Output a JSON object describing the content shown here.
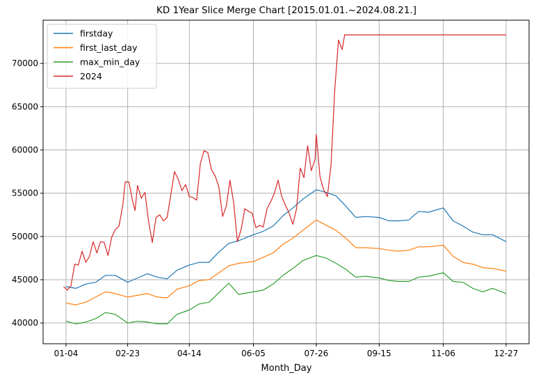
{
  "chart_data": {
    "type": "line",
    "title": "KD 1Year Slice Merge Chart [2015.01.01.~2024.08.21.]",
    "xlabel": "Month_Day",
    "ylabel": "",
    "x_ticks": [
      "01-04",
      "02-23",
      "04-14",
      "06-05",
      "07-26",
      "09-15",
      "11-06",
      "12-27"
    ],
    "y_ticks": [
      40000,
      45000,
      50000,
      55000,
      60000,
      65000,
      70000
    ],
    "ylim": [
      37600,
      75000
    ],
    "grid": true,
    "legend": "top-left",
    "series": [
      {
        "name": "firstday",
        "color": "#1f77b4",
        "points": [
          [
            "01-04",
            44200
          ],
          [
            "01-12",
            44000
          ],
          [
            "01-20",
            44500
          ],
          [
            "01-28",
            44700
          ],
          [
            "02-05",
            45500
          ],
          [
            "02-13",
            45500
          ],
          [
            "02-23",
            44700
          ],
          [
            "03-03",
            45200
          ],
          [
            "03-11",
            45700
          ],
          [
            "03-19",
            45300
          ],
          [
            "03-27",
            45100
          ],
          [
            "04-04",
            46100
          ],
          [
            "04-14",
            46700
          ],
          [
            "04-22",
            47000
          ],
          [
            "04-30",
            47000
          ],
          [
            "05-08",
            48200
          ],
          [
            "05-16",
            49200
          ],
          [
            "05-24",
            49500
          ],
          [
            "06-05",
            50200
          ],
          [
            "06-13",
            50600
          ],
          [
            "06-21",
            51200
          ],
          [
            "06-29",
            52400
          ],
          [
            "07-07",
            53300
          ],
          [
            "07-15",
            54300
          ],
          [
            "07-26",
            55400
          ],
          [
            "08-03",
            55100
          ],
          [
            "08-11",
            54700
          ],
          [
            "08-19",
            53500
          ],
          [
            "08-27",
            52200
          ],
          [
            "09-04",
            52300
          ],
          [
            "09-15",
            52200
          ],
          [
            "09-23",
            51800
          ],
          [
            "10-01",
            51800
          ],
          [
            "10-09",
            51900
          ],
          [
            "10-17",
            52900
          ],
          [
            "10-25",
            52800
          ],
          [
            "11-06",
            53300
          ],
          [
            "11-14",
            51800
          ],
          [
            "11-22",
            51200
          ],
          [
            "11-30",
            50500
          ],
          [
            "12-08",
            50200
          ],
          [
            "12-16",
            50200
          ],
          [
            "12-27",
            49400
          ]
        ]
      },
      {
        "name": "first_last_day",
        "color": "#ff7f0e",
        "points": [
          [
            "01-04",
            42300
          ],
          [
            "01-12",
            42100
          ],
          [
            "01-20",
            42400
          ],
          [
            "01-28",
            43000
          ],
          [
            "02-05",
            43600
          ],
          [
            "02-13",
            43400
          ],
          [
            "02-23",
            43000
          ],
          [
            "03-03",
            43200
          ],
          [
            "03-11",
            43400
          ],
          [
            "03-19",
            43000
          ],
          [
            "03-27",
            42900
          ],
          [
            "04-04",
            43900
          ],
          [
            "04-14",
            44300
          ],
          [
            "04-22",
            44900
          ],
          [
            "04-30",
            45000
          ],
          [
            "05-08",
            45800
          ],
          [
            "05-16",
            46600
          ],
          [
            "05-24",
            46900
          ],
          [
            "06-05",
            47100
          ],
          [
            "06-13",
            47600
          ],
          [
            "06-21",
            48100
          ],
          [
            "06-29",
            49100
          ],
          [
            "07-07",
            49800
          ],
          [
            "07-15",
            50700
          ],
          [
            "07-26",
            51900
          ],
          [
            "08-03",
            51300
          ],
          [
            "08-11",
            50700
          ],
          [
            "08-19",
            49800
          ],
          [
            "08-27",
            48700
          ],
          [
            "09-04",
            48700
          ],
          [
            "09-15",
            48600
          ],
          [
            "09-23",
            48400
          ],
          [
            "10-01",
            48300
          ],
          [
            "10-09",
            48400
          ],
          [
            "10-17",
            48800
          ],
          [
            "10-25",
            48800
          ],
          [
            "11-06",
            49000
          ],
          [
            "11-14",
            47700
          ],
          [
            "11-22",
            47000
          ],
          [
            "11-30",
            46800
          ],
          [
            "12-08",
            46400
          ],
          [
            "12-16",
            46300
          ],
          [
            "12-27",
            46000
          ]
        ]
      },
      {
        "name": "max_min_day",
        "color": "#2ca02c",
        "points": [
          [
            "01-04",
            40200
          ],
          [
            "01-12",
            39900
          ],
          [
            "01-20",
            40100
          ],
          [
            "01-28",
            40500
          ],
          [
            "02-05",
            41200
          ],
          [
            "02-13",
            41000
          ],
          [
            "02-23",
            40000
          ],
          [
            "03-03",
            40200
          ],
          [
            "03-11",
            40100
          ],
          [
            "03-19",
            39900
          ],
          [
            "03-27",
            39900
          ],
          [
            "04-04",
            41000
          ],
          [
            "04-14",
            41500
          ],
          [
            "04-22",
            42200
          ],
          [
            "04-30",
            42400
          ],
          [
            "05-08",
            43500
          ],
          [
            "05-16",
            44600
          ],
          [
            "05-24",
            43300
          ],
          [
            "06-05",
            43600
          ],
          [
            "06-13",
            43800
          ],
          [
            "06-21",
            44500
          ],
          [
            "06-29",
            45500
          ],
          [
            "07-07",
            46300
          ],
          [
            "07-15",
            47200
          ],
          [
            "07-26",
            47800
          ],
          [
            "08-03",
            47500
          ],
          [
            "08-11",
            46900
          ],
          [
            "08-19",
            46200
          ],
          [
            "08-27",
            45300
          ],
          [
            "09-04",
            45400
          ],
          [
            "09-15",
            45200
          ],
          [
            "09-23",
            44900
          ],
          [
            "10-01",
            44800
          ],
          [
            "10-09",
            44800
          ],
          [
            "10-17",
            45300
          ],
          [
            "10-25",
            45400
          ],
          [
            "11-06",
            45800
          ],
          [
            "11-14",
            44800
          ],
          [
            "11-22",
            44700
          ],
          [
            "11-30",
            44000
          ],
          [
            "12-08",
            43600
          ],
          [
            "12-16",
            44000
          ],
          [
            "12-27",
            43400
          ]
        ]
      },
      {
        "name": "2024",
        "color": "#d62728",
        "points": [
          [
            "01-02",
            44200
          ],
          [
            "01-05",
            43800
          ],
          [
            "01-08",
            44300
          ],
          [
            "01-11",
            46800
          ],
          [
            "01-14",
            46700
          ],
          [
            "01-17",
            48300
          ],
          [
            "01-20",
            47000
          ],
          [
            "01-23",
            47700
          ],
          [
            "01-26",
            49400
          ],
          [
            "01-29",
            48100
          ],
          [
            "02-01",
            49400
          ],
          [
            "02-04",
            49300
          ],
          [
            "02-07",
            47800
          ],
          [
            "02-10",
            49900
          ],
          [
            "02-13",
            50800
          ],
          [
            "02-16",
            51200
          ],
          [
            "02-19",
            53600
          ],
          [
            "02-21",
            56300
          ],
          [
            "02-24",
            56300
          ],
          [
            "02-27",
            54100
          ],
          [
            "03-01",
            53000
          ],
          [
            "03-03",
            55900
          ],
          [
            "03-06",
            54400
          ],
          [
            "03-09",
            55100
          ],
          [
            "03-12",
            51700
          ],
          [
            "03-15",
            49300
          ],
          [
            "03-18",
            52200
          ],
          [
            "03-21",
            52500
          ],
          [
            "03-24",
            51800
          ],
          [
            "03-27",
            52200
          ],
          [
            "03-30",
            54800
          ],
          [
            "04-02",
            57500
          ],
          [
            "04-05",
            56600
          ],
          [
            "04-08",
            55300
          ],
          [
            "04-11",
            56000
          ],
          [
            "04-14",
            54600
          ],
          [
            "04-17",
            54500
          ],
          [
            "04-20",
            54200
          ],
          [
            "04-23",
            58500
          ],
          [
            "04-26",
            59900
          ],
          [
            "04-29",
            59700
          ],
          [
            "05-02",
            57700
          ],
          [
            "05-05",
            57000
          ],
          [
            "05-08",
            55700
          ],
          [
            "05-11",
            52300
          ],
          [
            "05-14",
            53500
          ],
          [
            "05-17",
            56500
          ],
          [
            "05-20",
            53900
          ],
          [
            "05-23",
            49400
          ],
          [
            "05-26",
            50800
          ],
          [
            "05-29",
            53200
          ],
          [
            "06-01",
            52900
          ],
          [
            "06-04",
            52700
          ],
          [
            "06-07",
            51000
          ],
          [
            "06-10",
            51300
          ],
          [
            "06-13",
            51100
          ],
          [
            "06-16",
            53200
          ],
          [
            "06-19",
            54000
          ],
          [
            "06-22",
            55000
          ],
          [
            "06-25",
            56500
          ],
          [
            "06-28",
            54600
          ],
          [
            "07-01",
            53600
          ],
          [
            "07-04",
            52700
          ],
          [
            "07-07",
            51400
          ],
          [
            "07-10",
            53200
          ],
          [
            "07-13",
            57900
          ],
          [
            "07-16",
            56800
          ],
          [
            "07-19",
            60500
          ],
          [
            "07-22",
            57600
          ],
          [
            "07-25",
            58900
          ],
          [
            "07-26",
            61800
          ],
          [
            "07-29",
            56900
          ],
          [
            "08-01",
            55400
          ],
          [
            "08-04",
            54600
          ],
          [
            "08-07",
            58300
          ],
          [
            "08-10",
            66900
          ],
          [
            "08-13",
            72700
          ],
          [
            "08-16",
            71600
          ],
          [
            "08-18",
            73300
          ],
          [
            "08-21",
            73300
          ],
          [
            "12-27",
            73300
          ]
        ]
      }
    ]
  }
}
